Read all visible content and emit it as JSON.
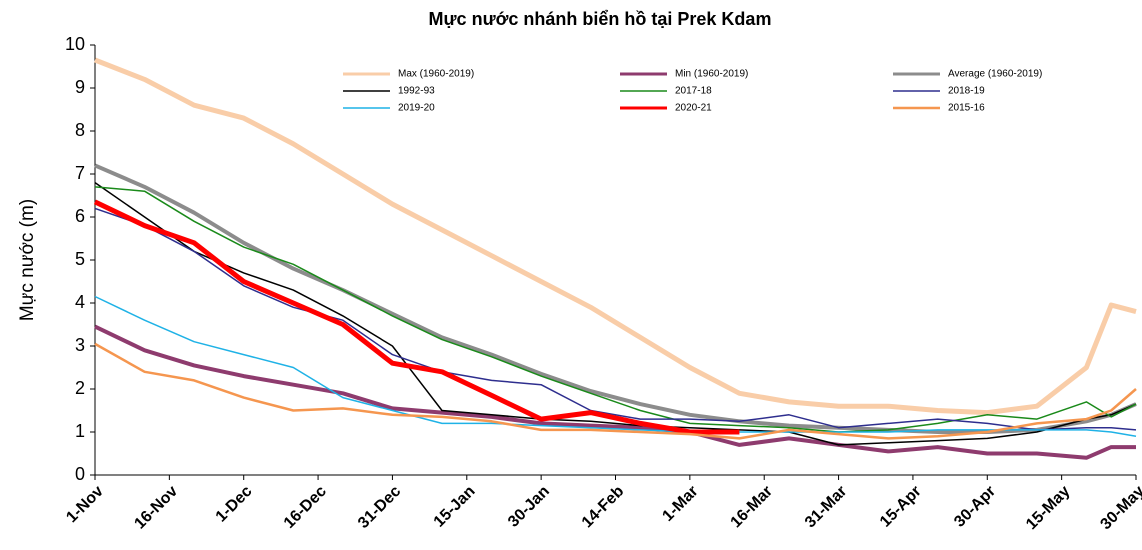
{
  "chart_data": {
    "type": "line",
    "title": "Mực nước nhánh biển hồ tại Prek Kdam",
    "y_label": "Mực nước (m)",
    "x": [
      0,
      10,
      20,
      30,
      40,
      50,
      60,
      70,
      80,
      90,
      100,
      110,
      120,
      130,
      140,
      150,
      160,
      170,
      180,
      190,
      200,
      205,
      210
    ],
    "xlim": [
      0,
      210
    ],
    "xticks": [
      {
        "value": 0,
        "label": "1-Nov"
      },
      {
        "value": 15,
        "label": "16-Nov"
      },
      {
        "value": 30,
        "label": "1-Dec"
      },
      {
        "value": 45,
        "label": "16-Dec"
      },
      {
        "value": 60,
        "label": "31-Dec"
      },
      {
        "value": 75,
        "label": "15-Jan"
      },
      {
        "value": 90,
        "label": "30-Jan"
      },
      {
        "value": 105,
        "label": "14-Feb"
      },
      {
        "value": 120,
        "label": "1-Mar"
      },
      {
        "value": 135,
        "label": "16-Mar"
      },
      {
        "value": 150,
        "label": "31-Mar"
      },
      {
        "value": 165,
        "label": "15-Apr"
      },
      {
        "value": 180,
        "label": "30-Apr"
      },
      {
        "value": 195,
        "label": "15-May"
      },
      {
        "value": 210,
        "label": "30-May"
      }
    ],
    "ylim": [
      0,
      10
    ],
    "yticks": [
      0,
      1,
      2,
      3,
      4,
      5,
      6,
      7,
      8,
      9,
      10
    ],
    "grid": false,
    "series": [
      {
        "name": "Max (1960-2019)",
        "color": "#f9cda8",
        "linewidth": 5,
        "values": [
          9.65,
          9.2,
          8.6,
          8.3,
          7.7,
          7.0,
          6.3,
          5.7,
          5.1,
          4.5,
          3.9,
          3.2,
          2.5,
          1.9,
          1.7,
          1.6,
          1.6,
          1.5,
          1.45,
          1.6,
          2.5,
          3.95,
          3.8
        ]
      },
      {
        "name": "Min (1960-2019)",
        "color": "#8e3b6e",
        "linewidth": 4,
        "values": [
          3.45,
          2.9,
          2.55,
          2.3,
          2.1,
          1.9,
          1.55,
          1.45,
          1.35,
          1.2,
          1.15,
          1.1,
          1.0,
          0.7,
          0.85,
          0.7,
          0.55,
          0.65,
          0.5,
          0.5,
          0.4,
          0.65,
          0.65
        ]
      },
      {
        "name": "Average (1960-2019)",
        "color": "#8c8c8c",
        "linewidth": 4,
        "values": [
          7.2,
          6.7,
          6.1,
          5.4,
          4.8,
          4.3,
          3.75,
          3.2,
          2.8,
          2.35,
          1.95,
          1.65,
          1.4,
          1.25,
          1.15,
          1.1,
          1.05,
          1.0,
          1.0,
          1.05,
          1.25,
          1.4,
          1.65
        ]
      },
      {
        "name": "1992-93",
        "color": "#000000",
        "linewidth": 1.5,
        "values": [
          6.8,
          6.0,
          5.2,
          4.7,
          4.3,
          3.7,
          3.0,
          1.5,
          1.4,
          1.3,
          1.25,
          1.15,
          1.1,
          1.05,
          1.0,
          0.7,
          0.75,
          0.8,
          0.85,
          1.0,
          1.3,
          1.4,
          1.65
        ]
      },
      {
        "name": "2017-18",
        "color": "#1a8a1a",
        "linewidth": 1.5,
        "values": [
          6.7,
          6.6,
          5.9,
          5.3,
          4.9,
          4.3,
          3.7,
          3.15,
          2.75,
          2.3,
          1.9,
          1.5,
          1.2,
          1.15,
          1.1,
          1.0,
          1.05,
          1.2,
          1.4,
          1.3,
          1.7,
          1.35,
          1.65
        ]
      },
      {
        "name": "2018-19",
        "color": "#2e2e8e",
        "linewidth": 1.5,
        "values": [
          6.2,
          5.8,
          5.2,
          4.4,
          3.9,
          3.6,
          2.8,
          2.4,
          2.2,
          2.1,
          1.5,
          1.3,
          1.3,
          1.25,
          1.4,
          1.1,
          1.2,
          1.3,
          1.2,
          1.05,
          1.1,
          1.1,
          1.05
        ]
      },
      {
        "name": "2019-20",
        "color": "#1fb2e6",
        "linewidth": 1.5,
        "values": [
          4.15,
          3.6,
          3.1,
          2.8,
          2.5,
          1.8,
          1.5,
          1.2,
          1.2,
          1.15,
          1.1,
          1.05,
          1.0,
          1.0,
          1.0,
          1.0,
          1.0,
          1.05,
          1.05,
          1.05,
          1.05,
          1.0,
          0.9
        ]
      },
      {
        "name": "2020-21",
        "color": "#ff0000",
        "linewidth": 5,
        "values": [
          6.35,
          5.8,
          5.4,
          4.5,
          4.0,
          3.5,
          2.6,
          2.4,
          1.85,
          1.3,
          1.45,
          1.2,
          1.0,
          1.0,
          null,
          null,
          null,
          null,
          null,
          null,
          null,
          null,
          null
        ]
      },
      {
        "name": "2015-16",
        "color": "#f5964f",
        "linewidth": 2.5,
        "values": [
          3.05,
          2.4,
          2.2,
          1.8,
          1.5,
          1.55,
          1.4,
          1.35,
          1.25,
          1.05,
          1.05,
          1.0,
          0.95,
          0.85,
          1.05,
          0.95,
          0.85,
          0.9,
          1.0,
          1.2,
          1.3,
          1.5,
          2.0
        ]
      }
    ]
  }
}
